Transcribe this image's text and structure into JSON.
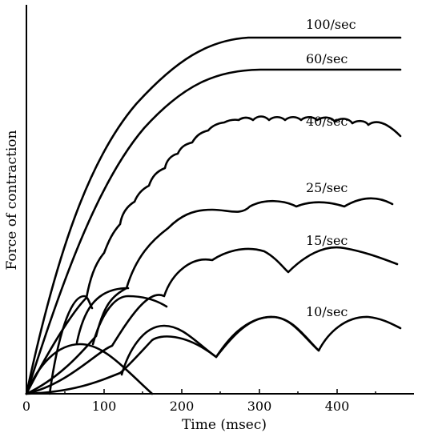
{
  "chart_data": {
    "type": "line",
    "title": "",
    "xlabel": "Time (msec)",
    "ylabel": "Force of contraction",
    "xlim": [
      0,
      450
    ],
    "ylim": [
      0,
      1
    ],
    "x_ticks": [
      "0",
      "100",
      "200",
      "300",
      "400"
    ],
    "grid": false,
    "legend": "none",
    "series": [
      {
        "name": "100/sec",
        "x": [
          0,
          20,
          50,
          100,
          150,
          200,
          250,
          270,
          440
        ],
        "y": [
          0,
          0.3,
          0.55,
          0.76,
          0.88,
          0.95,
          0.99,
          1.0,
          1.0
        ]
      },
      {
        "name": "60/sec",
        "x": [
          0,
          30,
          60,
          100,
          150,
          200,
          250,
          285,
          440
        ],
        "y": [
          0,
          0.28,
          0.48,
          0.65,
          0.79,
          0.88,
          0.94,
          0.94,
          0.94
        ]
      },
      {
        "name": "40/sec",
        "x": [
          0,
          25,
          50,
          75,
          100,
          125,
          150,
          175,
          200,
          225,
          250,
          275,
          300,
          325,
          350,
          375,
          400,
          425,
          440
        ],
        "y": [
          0,
          0.22,
          0.38,
          0.5,
          0.58,
          0.64,
          0.68,
          0.7,
          0.72,
          0.73,
          0.74,
          0.74,
          0.74,
          0.74,
          0.74,
          0.74,
          0.74,
          0.74,
          0.74
        ]
      },
      {
        "name": "25/sec",
        "x": [
          0,
          40,
          80,
          120,
          160,
          200,
          240,
          280,
          320,
          360,
          400,
          440
        ],
        "y": [
          0,
          0.18,
          0.36,
          0.45,
          0.5,
          0.53,
          0.54,
          0.55,
          0.55,
          0.55,
          0.55,
          0.55
        ]
      },
      {
        "name": "15/sec",
        "x": [
          0,
          65,
          110,
          165,
          220,
          260,
          300,
          355,
          400,
          440
        ],
        "y": [
          0,
          0.12,
          0.29,
          0.24,
          0.39,
          0.28,
          0.39,
          0.3,
          0.4,
          0.34
        ]
      },
      {
        "name": "10/sec",
        "x": [
          0,
          60,
          120,
          170,
          220,
          290,
          340,
          400,
          440
        ],
        "y": [
          0,
          0.12,
          0.0,
          0.18,
          0.1,
          0.18,
          0.1,
          0.19,
          0.16
        ]
      }
    ],
    "twitch_curves": [
      "twitch-1",
      "twitch-2",
      "twitch-3",
      "twitch-4",
      "twitch-5",
      "twitch-6"
    ]
  }
}
